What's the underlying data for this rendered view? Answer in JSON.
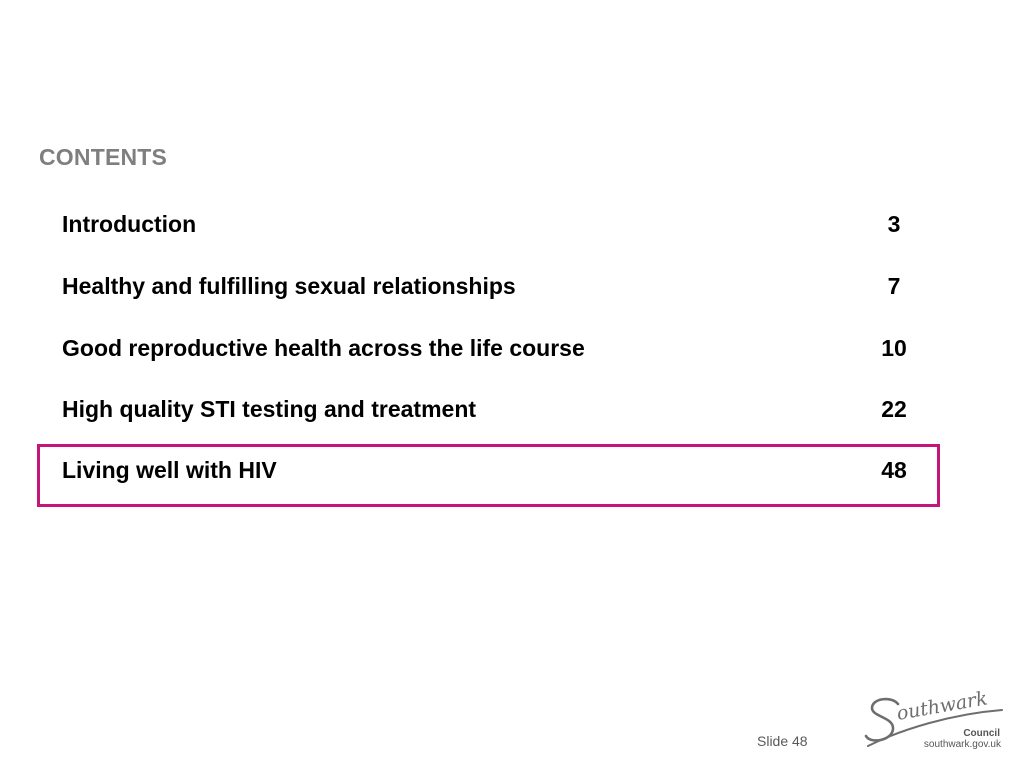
{
  "heading": "CONTENTS",
  "toc": [
    {
      "title": "Introduction",
      "page": "3"
    },
    {
      "title": "Healthy and fulfilling sexual relationships",
      "page": "7"
    },
    {
      "title": "Good reproductive health across the life course",
      "page": "10"
    },
    {
      "title": "High quality STI testing and treatment",
      "page": "22"
    },
    {
      "title": "Living well with HIV",
      "page": "48"
    }
  ],
  "highlighted_item": "Living well with HIV",
  "slide_label": "Slide 48",
  "logo": {
    "wordmark": "Southwark",
    "council": "Council",
    "url": "southwark.gov.uk"
  },
  "colors": {
    "heading": "#7f7f7f",
    "highlight": "#c4157a",
    "text": "#000000"
  }
}
